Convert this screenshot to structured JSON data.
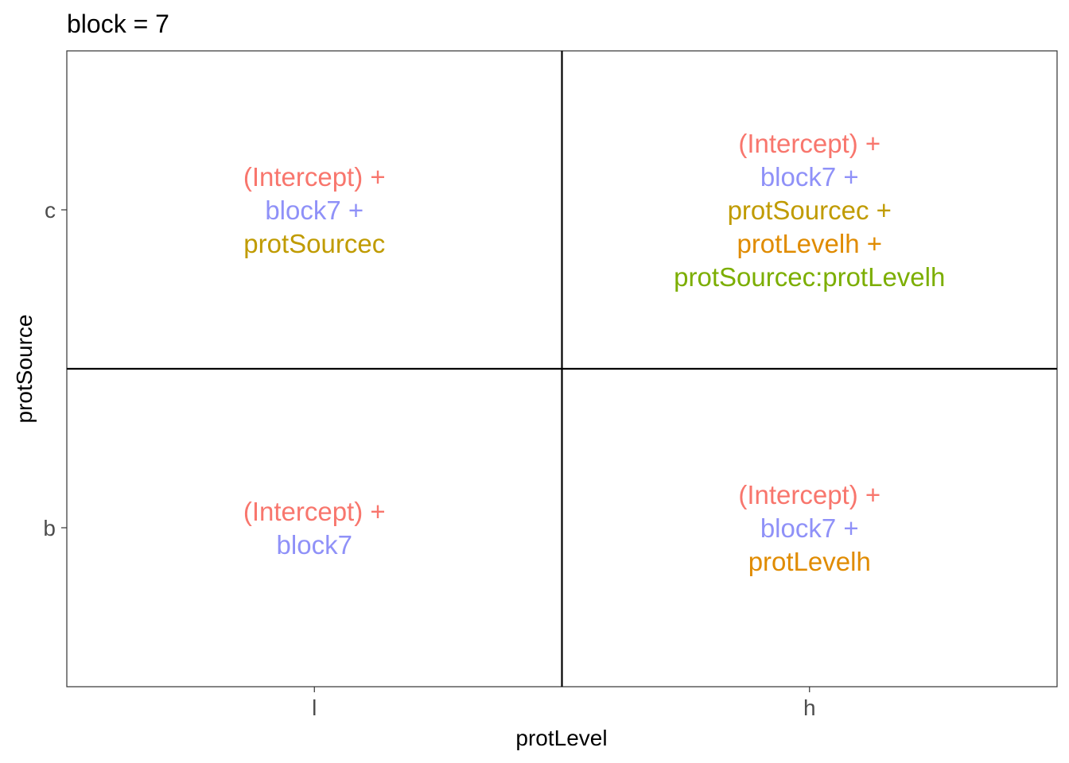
{
  "chart_data": {
    "type": "table",
    "title": "block = 7",
    "xlabel": "protLevel",
    "ylabel": "protSource",
    "x_categories": [
      "l",
      "h"
    ],
    "y_categories": [
      "b",
      "c"
    ],
    "term_colors": {
      "(Intercept)": "#F8766D",
      "block7": "#8F91F8",
      "protSourcec": "#C09B00",
      "protLevelh": "#E08B00",
      "protSourcec:protLevelh": "#7CAE00"
    },
    "cells": [
      {
        "x": "l",
        "y": "c",
        "terms": [
          "(Intercept)",
          "block7",
          "protSourcec"
        ]
      },
      {
        "x": "h",
        "y": "c",
        "terms": [
          "(Intercept)",
          "block7",
          "protSourcec",
          "protLevelh",
          "protSourcec:protLevelh"
        ]
      },
      {
        "x": "l",
        "y": "b",
        "terms": [
          "(Intercept)",
          "block7"
        ]
      },
      {
        "x": "h",
        "y": "b",
        "terms": [
          "(Intercept)",
          "block7",
          "protLevelh"
        ]
      }
    ],
    "separator": "+",
    "grid": false
  }
}
